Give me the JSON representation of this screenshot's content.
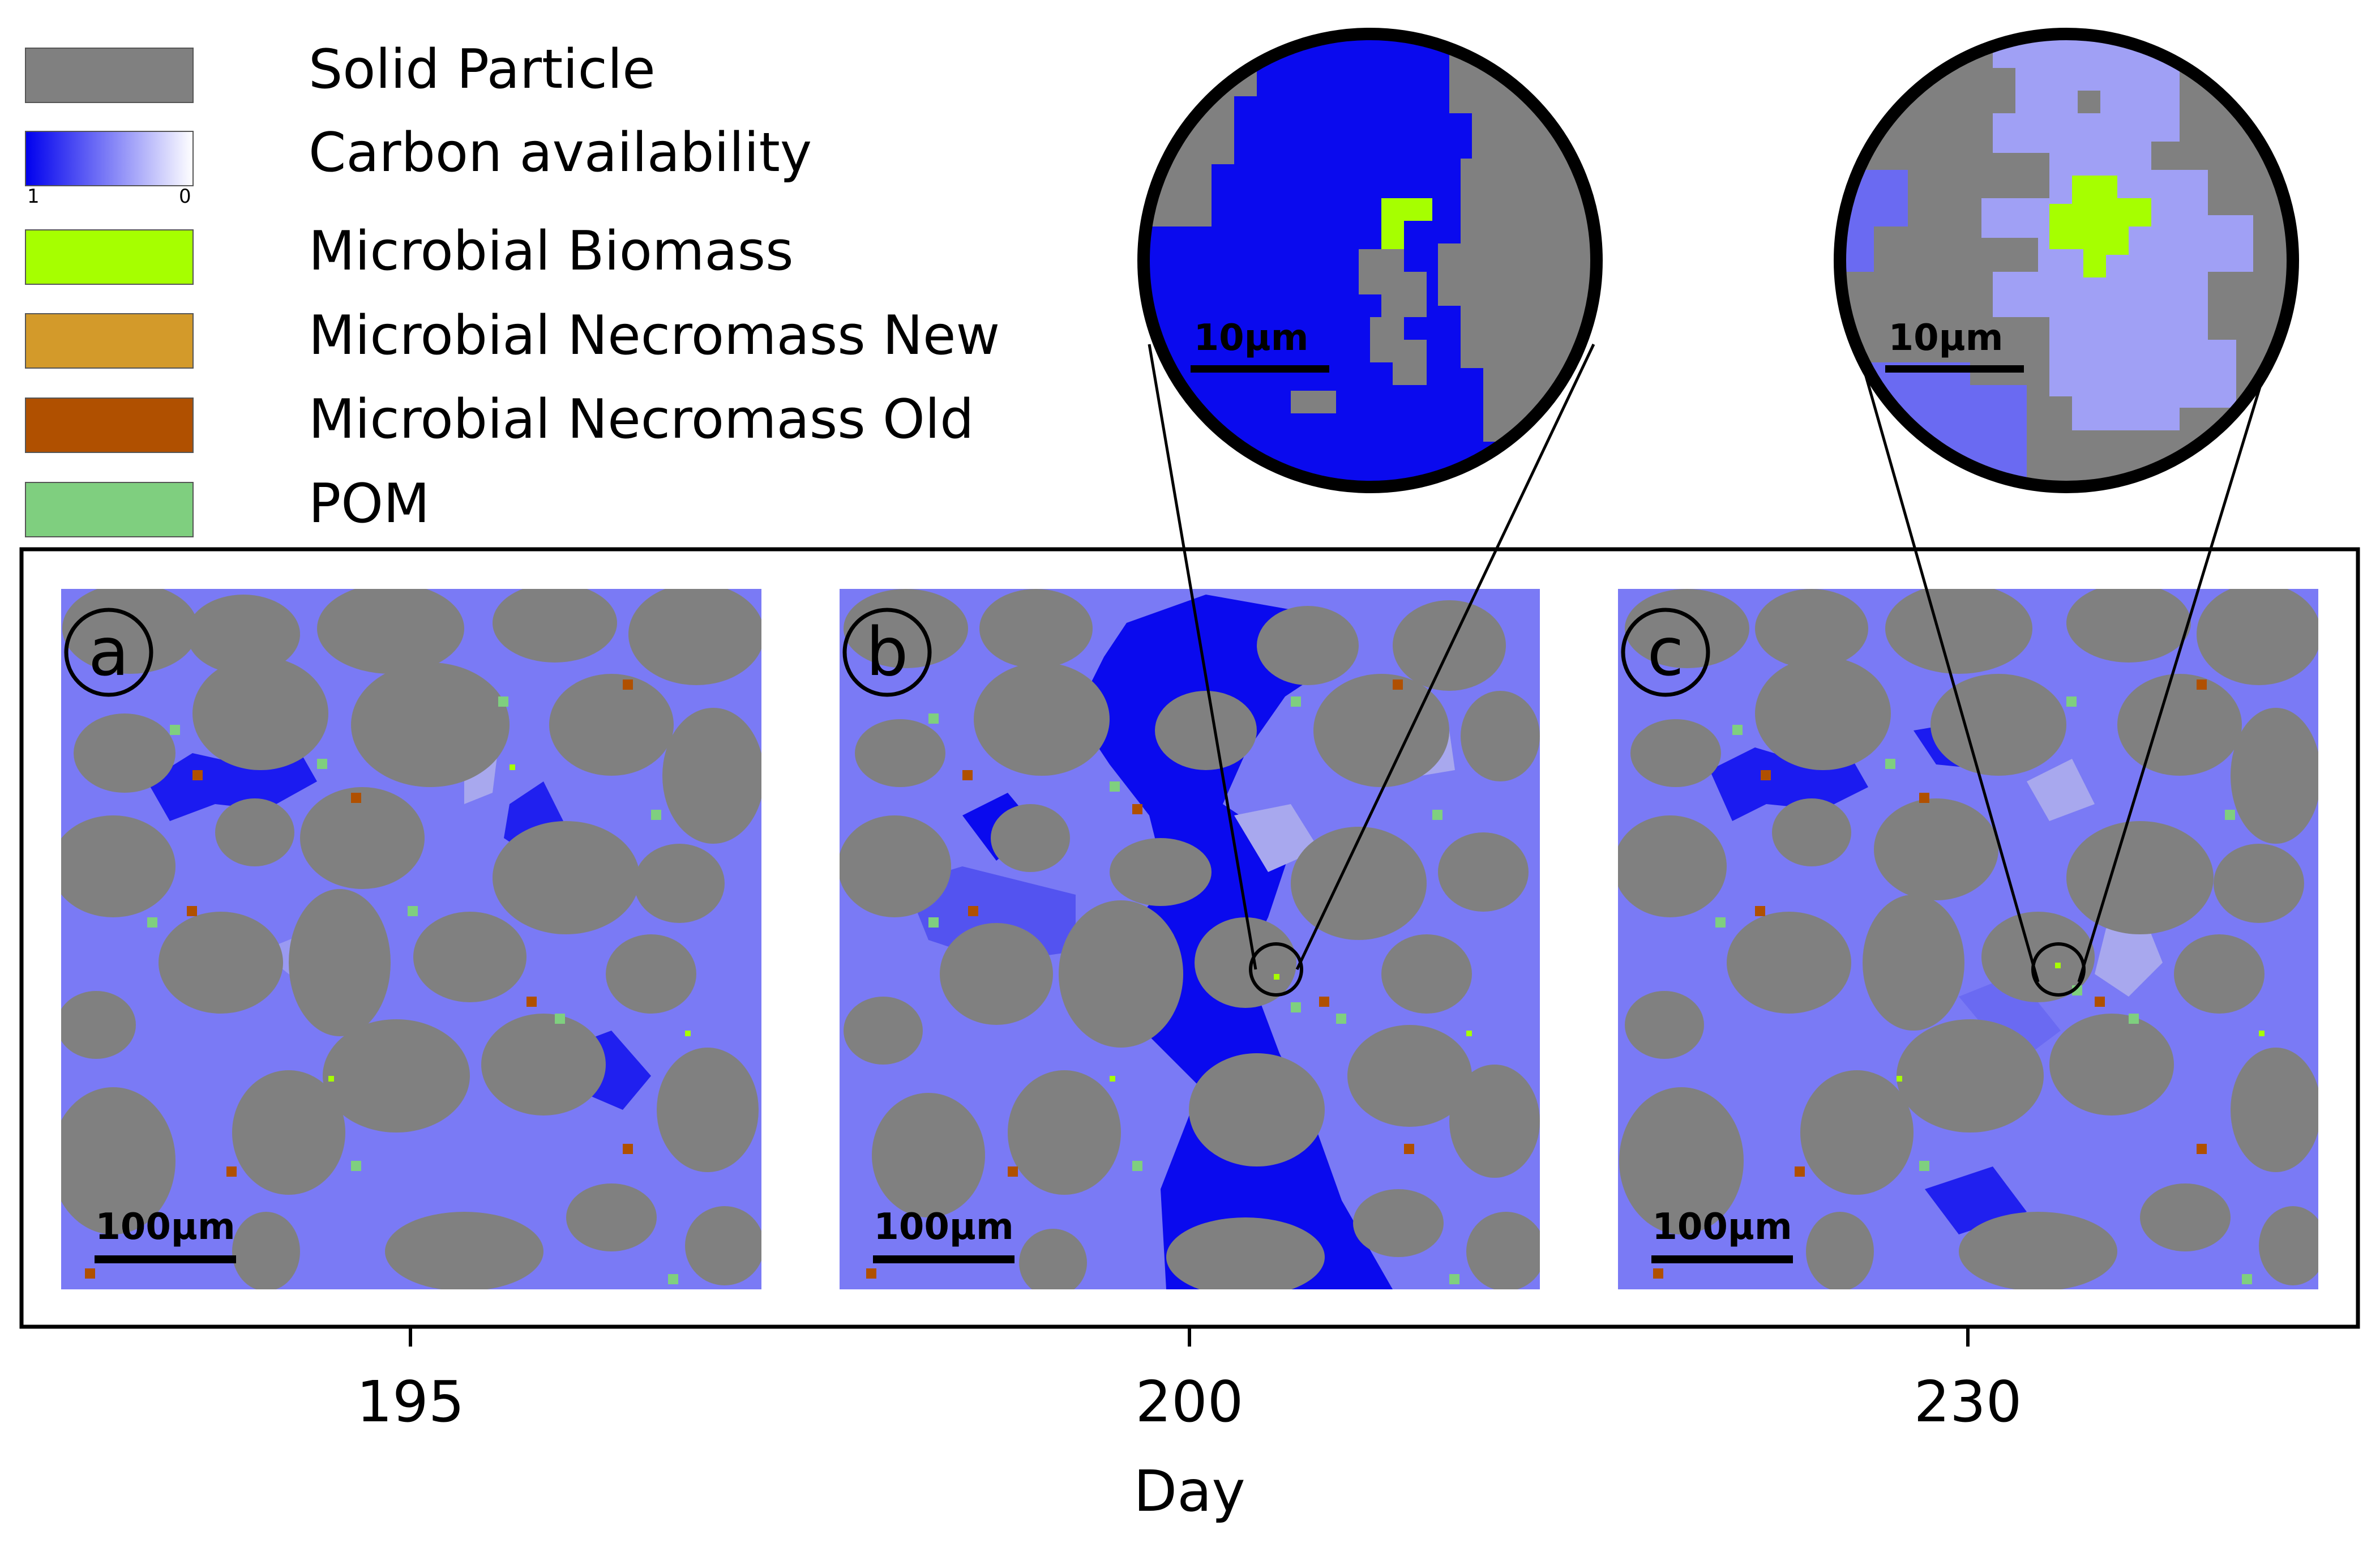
{
  "legend": {
    "items": [
      {
        "key": "solid",
        "label": "Solid Particle",
        "color": "#808080"
      },
      {
        "key": "carbon",
        "label": "Carbon availability",
        "gradient_from": "#0000ee",
        "gradient_to": "#ffffff",
        "min_label": "1",
        "max_label": "0"
      },
      {
        "key": "biomass",
        "label": "Microbial Biomass",
        "color": "#a6ff00"
      },
      {
        "key": "necro_new",
        "label": "Microbial Necromass New",
        "color": "#d39a2a"
      },
      {
        "key": "necro_old",
        "label": "Microbial Necromass Old",
        "color": "#b05000"
      },
      {
        "key": "pom",
        "label": "POM",
        "color": "#7fcf7f"
      }
    ]
  },
  "panels": [
    {
      "letter": "a",
      "day": "195",
      "scale_label": "100μm"
    },
    {
      "letter": "b",
      "day": "200",
      "scale_label": "100μm"
    },
    {
      "letter": "c",
      "day": "230",
      "scale_label": "100μm"
    }
  ],
  "zooms": [
    {
      "panel": "b",
      "scale_label": "10μm"
    },
    {
      "panel": "c",
      "scale_label": "10μm"
    }
  ],
  "xaxis": {
    "label": "Day"
  },
  "colors": {
    "solid": "#808080",
    "pore_light": "#7a7af5",
    "pore_mid": "#6a6af2",
    "carbon_dark": "#0a0aee",
    "carbon_pale": "#a8a8ee",
    "biomass": "#a6ff00",
    "necro_old": "#b05000",
    "necro_new": "#d39a2a",
    "pom": "#7fcf7f"
  }
}
